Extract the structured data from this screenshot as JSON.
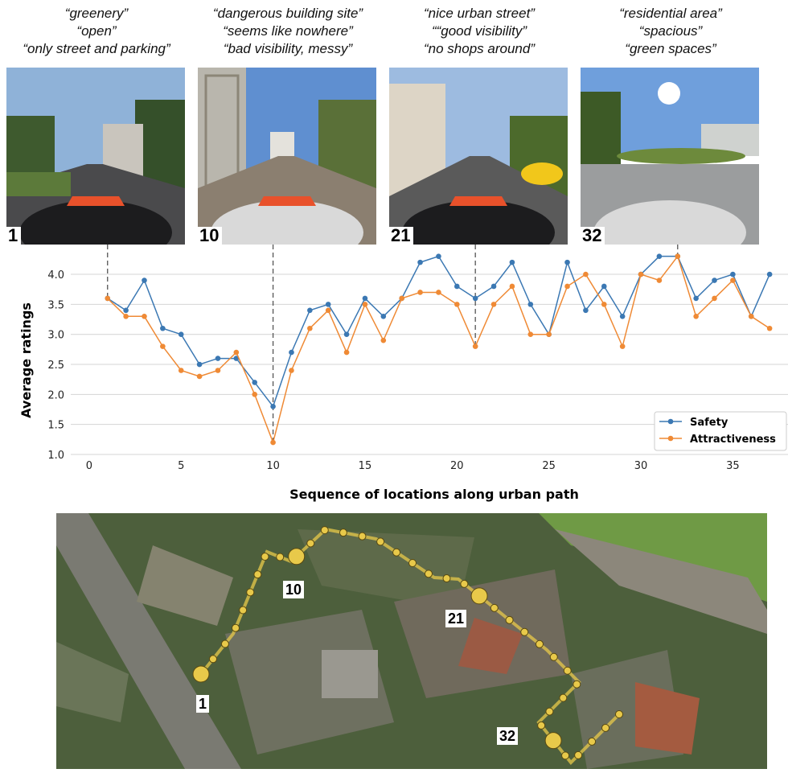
{
  "captions": [
    {
      "loc": "1",
      "lines": [
        "“greenery”",
        "“open”",
        "“only street and parking”"
      ]
    },
    {
      "loc": "10",
      "lines": [
        "“dangerous building site”",
        "“seems like nowhere”",
        "“bad visibility, messy”"
      ]
    },
    {
      "loc": "21",
      "lines": [
        "“nice urban street”",
        "““good visibility”",
        "“no shops around”"
      ]
    },
    {
      "loc": "32",
      "lines": [
        "“residential area”",
        "“spacious”",
        "“green spaces”"
      ]
    }
  ],
  "map_labels": [
    "10",
    "21",
    "1",
    "32"
  ],
  "colors": {
    "safety": "#3b78b3",
    "attractiveness": "#ef8a35",
    "path": "#e8c94a"
  },
  "chart_data": {
    "type": "line",
    "xlabel": "Sequence of locations along urban path",
    "ylabel": "Average ratings",
    "xlim": [
      -1,
      38
    ],
    "ylim": [
      1.0,
      4.55
    ],
    "xticks": [
      0,
      5,
      10,
      15,
      20,
      25,
      30,
      35
    ],
    "yticks": [
      1.0,
      1.5,
      2.0,
      2.5,
      3.0,
      3.5,
      4.0
    ],
    "grid": "horizontal",
    "legend_position": "bottom-right",
    "x": [
      1,
      2,
      3,
      4,
      5,
      6,
      7,
      8,
      9,
      10,
      11,
      12,
      13,
      14,
      15,
      16,
      17,
      18,
      19,
      20,
      21,
      22,
      23,
      24,
      25,
      26,
      27,
      28,
      29,
      30,
      31,
      32,
      33,
      34,
      35,
      36,
      37
    ],
    "series": [
      {
        "name": "Safety",
        "values": [
          3.6,
          3.4,
          3.9,
          3.1,
          3.0,
          2.5,
          2.6,
          2.6,
          2.2,
          1.8,
          2.7,
          3.4,
          3.5,
          3.0,
          3.6,
          3.3,
          3.6,
          4.2,
          4.3,
          3.8,
          3.6,
          3.8,
          4.2,
          3.5,
          3.0,
          4.2,
          3.4,
          3.8,
          3.3,
          4.0,
          4.3,
          4.3,
          3.6,
          3.9,
          4.0,
          3.3,
          4.0
        ]
      },
      {
        "name": "Attractiveness",
        "values": [
          3.6,
          3.3,
          3.3,
          2.8,
          2.4,
          2.3,
          2.4,
          2.7,
          2.0,
          1.2,
          2.4,
          3.1,
          3.4,
          2.7,
          3.5,
          2.9,
          3.6,
          3.7,
          3.7,
          3.5,
          2.8,
          3.5,
          3.8,
          3.0,
          3.0,
          3.8,
          4.0,
          3.5,
          2.8,
          4.0,
          3.9,
          4.3,
          3.3,
          3.6,
          3.9,
          3.3,
          3.1
        ]
      }
    ],
    "highlighted_locations": [
      1,
      10,
      21,
      32
    ]
  }
}
